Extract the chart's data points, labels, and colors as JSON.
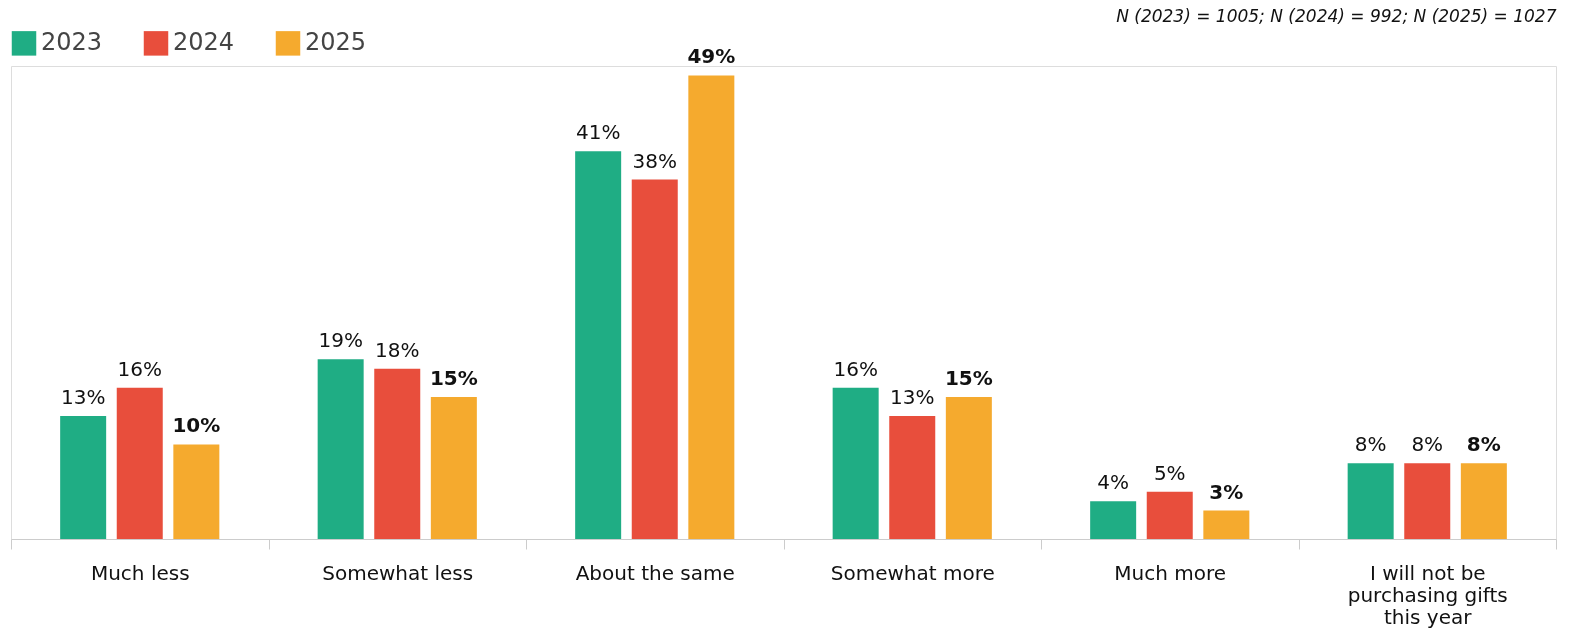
{
  "chart_data": {
    "type": "bar",
    "categories": [
      "Much less",
      "Somewhat less",
      "About the same",
      "Somewhat more",
      "Much more",
      "I will not be purchasing gifts this year"
    ],
    "series": [
      {
        "name": "2023",
        "color": "#1fad84",
        "values": [
          13,
          19,
          41,
          16,
          4,
          8
        ],
        "value_labels": [
          "13%",
          "19%",
          "41%",
          "16%",
          "4%",
          "8%"
        ]
      },
      {
        "name": "2024",
        "color": "#e84e3c",
        "values": [
          16,
          18,
          38,
          13,
          5,
          8
        ],
        "value_labels": [
          "16%",
          "18%",
          "38%",
          "13%",
          "5%",
          "8%"
        ]
      },
      {
        "name": "2025",
        "color": "#f5aa2e",
        "values": [
          10,
          15,
          49,
          15,
          3,
          8
        ],
        "value_labels": [
          "10%",
          "15%",
          "49%",
          "15%",
          "3%",
          "8%"
        ]
      }
    ],
    "annotations": [
      "N (2023) = 1005; N (2024) = 992; N (2025) = 1027"
    ],
    "legend": "top left"
  }
}
